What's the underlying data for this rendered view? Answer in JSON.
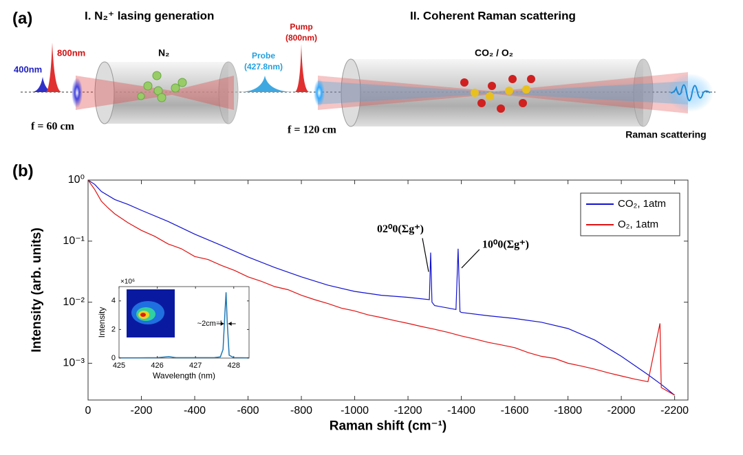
{
  "panel_labels": {
    "a": "(a)",
    "b": "(b)"
  },
  "diagram": {
    "stage1_title": "I. N₂⁺ lasing generation",
    "stage2_title": "II. Coherent Raman scattering",
    "pulse_800": "800nm",
    "pulse_400": "400nm",
    "gas1": "N₂",
    "probe_line1": "Probe",
    "probe_line2": "(427.8nm)",
    "pump_line1": "Pump",
    "pump_line2": "(800nm)",
    "gas2": "CO₂ / O₂",
    "focus1": "f = 60 cm",
    "focus2": "f = 120 cm",
    "output": "Raman scattering"
  },
  "chart_data": [
    {
      "type": "line",
      "xlabel": "Raman shift (cm⁻¹)",
      "ylabel": "Intensity (arb. units)",
      "xlim": [
        0,
        -2250
      ],
      "xticks": [
        0,
        -200,
        -400,
        -600,
        -800,
        -1000,
        -1200,
        -1400,
        -1600,
        -1800,
        -2000,
        -2200
      ],
      "ylim": [
        0.00025,
        1
      ],
      "yticks": [
        {
          "value": 1,
          "label": "10⁰"
        },
        {
          "value": 0.1,
          "label": "10⁻¹"
        },
        {
          "value": 0.01,
          "label": "10⁻²"
        },
        {
          "value": 0.001,
          "label": "10⁻³"
        }
      ],
      "log_y": true,
      "legend": "top-right",
      "series": [
        {
          "name": "CO₂, 1atm",
          "color": "#1010d0",
          "x": [
            0,
            -25,
            -50,
            -100,
            -150,
            -200,
            -300,
            -400,
            -500,
            -600,
            -700,
            -800,
            -900,
            -1000,
            -1100,
            -1200,
            -1280,
            -1285,
            -1290,
            -1300,
            -1380,
            -1388,
            -1395,
            -1400,
            -1500,
            -1600,
            -1700,
            -1800,
            -1900,
            -2000,
            -2100,
            -2150,
            -2200
          ],
          "values": [
            1,
            0.85,
            0.65,
            0.48,
            0.4,
            0.32,
            0.21,
            0.13,
            0.085,
            0.055,
            0.037,
            0.026,
            0.019,
            0.015,
            0.013,
            0.012,
            0.011,
            0.065,
            0.01,
            0.0088,
            0.0076,
            0.075,
            0.007,
            0.0068,
            0.006,
            0.0054,
            0.0047,
            0.0037,
            0.0024,
            0.0013,
            0.00065,
            0.00045,
            0.0003
          ]
        },
        {
          "name": "O₂, 1atm",
          "color": "#e01010",
          "x": [
            0,
            -25,
            -50,
            -75,
            -100,
            -150,
            -200,
            -250,
            -300,
            -350,
            -400,
            -450,
            -500,
            -550,
            -600,
            -650,
            -700,
            -750,
            -800,
            -850,
            -900,
            -950,
            -1000,
            -1050,
            -1100,
            -1150,
            -1200,
            -1250,
            -1300,
            -1350,
            -1400,
            -1450,
            -1500,
            -1550,
            -1600,
            -1650,
            -1700,
            -1750,
            -1800,
            -1850,
            -1900,
            -1950,
            -2000,
            -2050,
            -2100,
            -2145,
            -2150,
            -2200
          ],
          "values": [
            1,
            0.7,
            0.45,
            0.35,
            0.28,
            0.2,
            0.15,
            0.12,
            0.09,
            0.075,
            0.056,
            0.05,
            0.04,
            0.033,
            0.026,
            0.022,
            0.018,
            0.016,
            0.013,
            0.011,
            0.0095,
            0.008,
            0.0072,
            0.0062,
            0.0056,
            0.005,
            0.0045,
            0.004,
            0.0036,
            0.0032,
            0.0028,
            0.0025,
            0.0022,
            0.002,
            0.0018,
            0.0015,
            0.0013,
            0.0012,
            0.001,
            0.0009,
            0.0008,
            0.0007,
            0.00062,
            0.00055,
            0.0005,
            0.0045,
            0.0004,
            0.0003
          ]
        }
      ],
      "annotations": [
        {
          "text": "02⁰0(Σg⁺)",
          "x": -1285,
          "y": 0.065
        },
        {
          "text": "10⁰0(Σg⁺)",
          "x": -1388,
          "y": 0.075
        }
      ]
    },
    {
      "type": "line",
      "xlabel": "Wavelength (nm)",
      "ylabel": "Intensity",
      "scale_label": "×10⁶",
      "xlim": [
        425,
        428.4
      ],
      "xticks": [
        425,
        426,
        427,
        428
      ],
      "ylim": [
        0,
        5
      ],
      "yticks": [
        0,
        2,
        4
      ],
      "series": [
        {
          "name": null,
          "color": "#1f77b4",
          "x": [
            425,
            425.5,
            426,
            426.3,
            426.5,
            427,
            427.5,
            427.65,
            427.72,
            427.77,
            427.8,
            427.83,
            427.88,
            428,
            428.4
          ],
          "values": [
            0.02,
            0.02,
            0.03,
            0.1,
            0.03,
            0.03,
            0.04,
            0.08,
            0.6,
            3.2,
            4.6,
            2.5,
            0.2,
            0.03,
            0.02
          ]
        }
      ],
      "annotations": [
        {
          "text": "~2cm⁻¹"
        }
      ]
    }
  ]
}
